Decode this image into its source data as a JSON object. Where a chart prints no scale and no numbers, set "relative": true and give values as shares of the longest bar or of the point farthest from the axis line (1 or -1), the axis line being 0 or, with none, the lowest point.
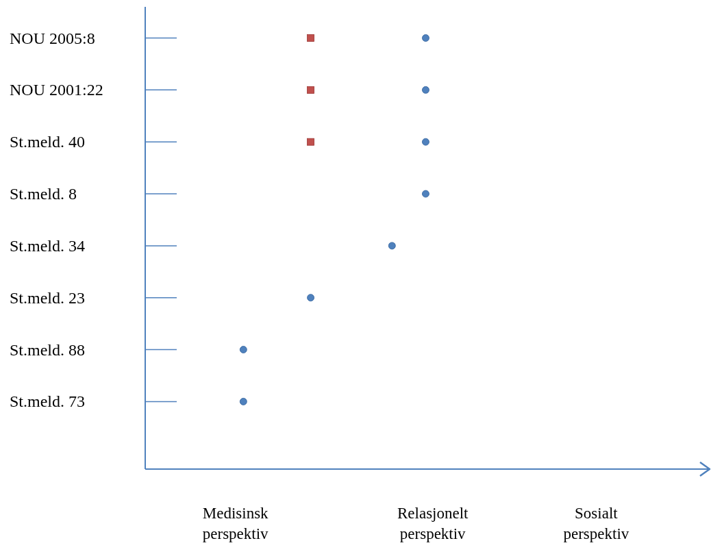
{
  "chart_data": {
    "type": "scatter",
    "orientation": "horizontal",
    "relative": true,
    "categories": [
      "NOU 2005:8",
      "NOU 2001:22",
      "St.meld. 40",
      "St.meld. 8",
      "St.meld. 34",
      "St.meld. 23",
      "St.meld. 88",
      "St.meld. 73"
    ],
    "series": [
      {
        "color": "#4f81bd",
        "marker": "circle",
        "values": [
          1,
          1,
          1,
          1,
          0.88,
          0.59,
          0.35,
          0.35
        ]
      },
      {
        "color": "#c0504d",
        "marker": "square",
        "values": [
          0.59,
          0.59,
          0.59,
          null,
          null,
          null,
          null,
          null
        ]
      }
    ],
    "annotations": [
      "Medisinsk perspektiv",
      "Relasjonelt perspektiv",
      "Sosialt perspektiv"
    ],
    "grid": false,
    "legend": false
  }
}
